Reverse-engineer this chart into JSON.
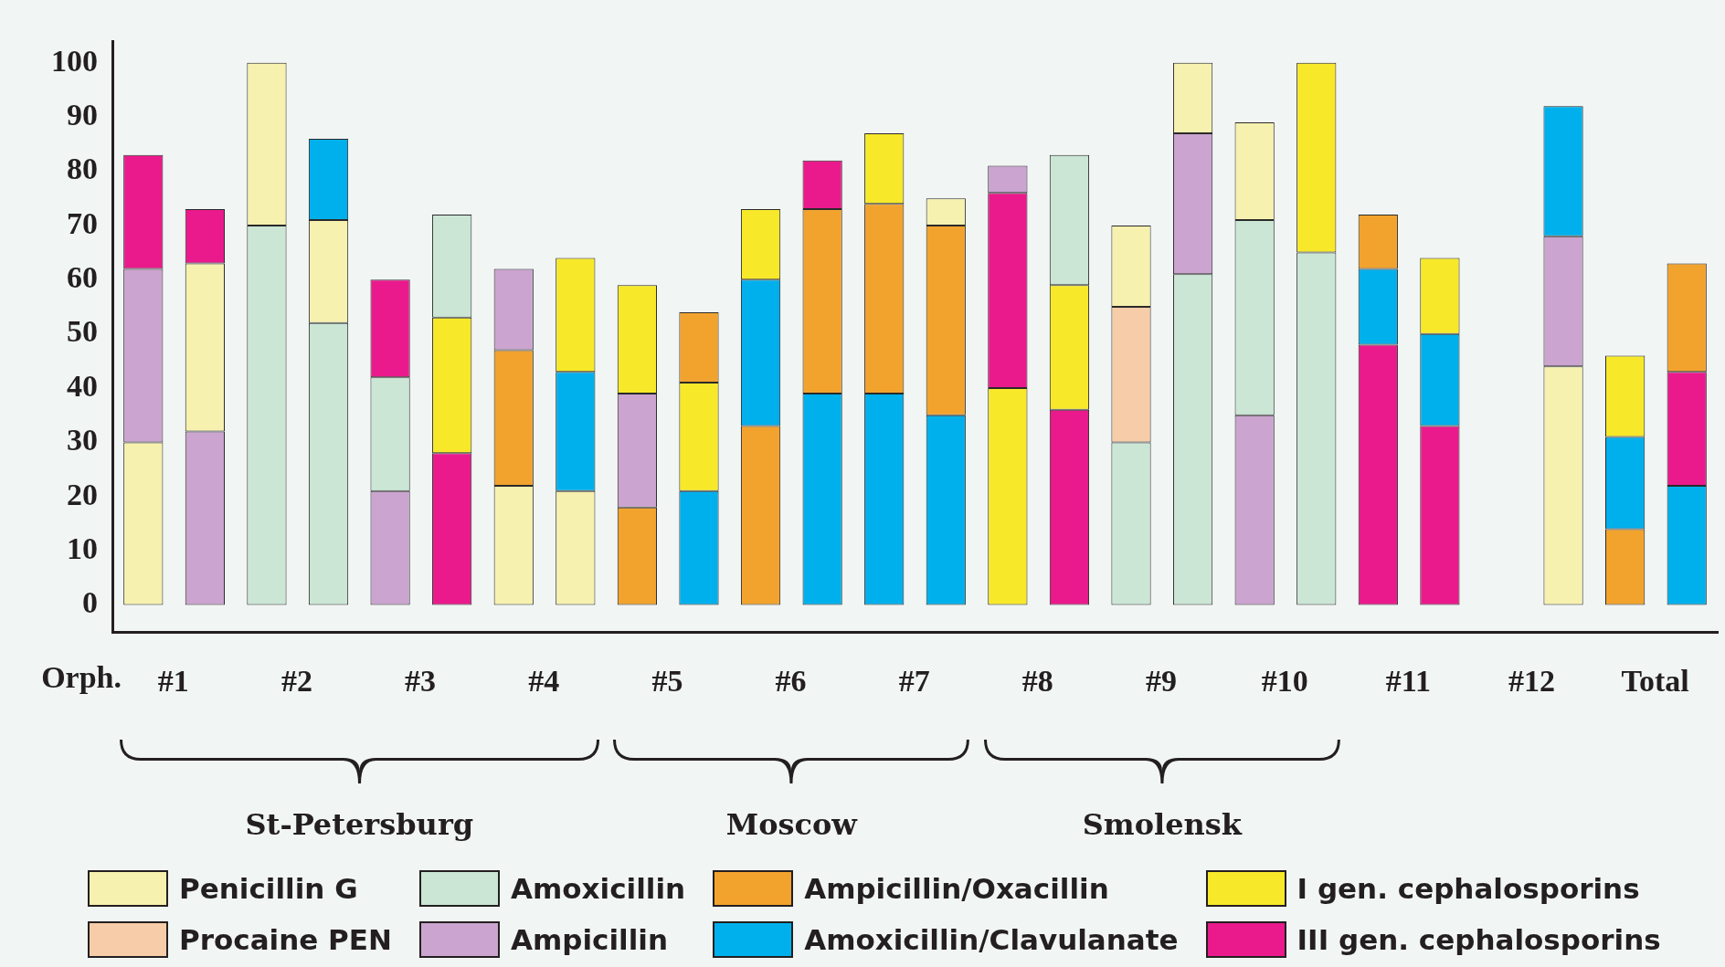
{
  "chart_data": {
    "type": "bar",
    "xlabel": "Orph.",
    "categories": [
      "#1",
      null,
      "#2",
      null,
      "#3",
      null,
      "#4",
      null,
      "#5",
      null,
      "#6",
      null,
      "#7",
      null,
      "#8",
      null,
      "#9",
      null,
      "#10",
      null,
      "#11",
      null,
      "#12",
      null,
      "Total",
      null
    ],
    "ylim": [
      -5,
      104
    ],
    "yticks": [
      0,
      10,
      20,
      30,
      40,
      50,
      60,
      70,
      80,
      90,
      100
    ],
    "legend": "bottom",
    "annotations": [
      "St-Petersburg",
      "Moscow",
      "Smolensk"
    ],
    "series": [
      {
        "name": "Penicillin G",
        "color": "#f7f1b0",
        "values": [
          30,
          31,
          30,
          19,
          null,
          null,
          22,
          21,
          null,
          null,
          null,
          null,
          null,
          5,
          null,
          null,
          15,
          13,
          18,
          null,
          null,
          null,
          null,
          44,
          null,
          null
        ],
        "base": [
          0,
          32,
          70,
          52,
          null,
          null,
          0,
          0,
          null,
          null,
          null,
          null,
          null,
          70,
          null,
          null,
          55,
          87,
          71,
          null,
          null,
          null,
          null,
          0,
          null,
          null
        ]
      },
      {
        "name": "Procaine PEN",
        "color": "#f6cda8",
        "values": [
          null,
          null,
          null,
          null,
          null,
          null,
          null,
          null,
          null,
          null,
          null,
          null,
          null,
          null,
          null,
          null,
          25,
          null,
          null,
          null,
          null,
          null,
          null,
          null,
          null,
          null
        ],
        "base": [
          null,
          null,
          null,
          null,
          null,
          null,
          null,
          null,
          null,
          null,
          null,
          null,
          null,
          null,
          null,
          null,
          30,
          null,
          null,
          null,
          null,
          null,
          null,
          null,
          null,
          null
        ]
      },
      {
        "name": "Amoxicillin",
        "color": "#cbe6d5",
        "values": [
          null,
          null,
          70,
          52,
          21,
          19,
          null,
          null,
          null,
          null,
          null,
          null,
          null,
          null,
          null,
          24,
          30,
          61,
          36,
          65,
          null,
          null,
          null,
          null,
          null,
          null
        ],
        "base": [
          null,
          null,
          0,
          0,
          21,
          53,
          null,
          null,
          null,
          null,
          null,
          null,
          null,
          null,
          null,
          59,
          0,
          0,
          35,
          0,
          null,
          null,
          null,
          null,
          null,
          null
        ]
      },
      {
        "name": "Ampicillin",
        "color": "#cba4cf",
        "values": [
          32,
          32,
          null,
          null,
          21,
          null,
          15,
          null,
          21,
          null,
          null,
          null,
          null,
          null,
          5,
          null,
          null,
          26,
          35,
          null,
          null,
          null,
          null,
          24,
          null,
          null
        ],
        "base": [
          30,
          0,
          null,
          null,
          0,
          null,
          47,
          null,
          18,
          null,
          null,
          null,
          null,
          null,
          76,
          null,
          null,
          61,
          0,
          null,
          null,
          null,
          null,
          44,
          null,
          null
        ]
      },
      {
        "name": "Ampicillin/Oxacillin",
        "color": "#f2a32e",
        "values": [
          null,
          null,
          null,
          null,
          null,
          null,
          25,
          null,
          18,
          13,
          33,
          34,
          35,
          35,
          null,
          null,
          null,
          null,
          null,
          null,
          10,
          null,
          null,
          null,
          14,
          20
        ],
        "base": [
          null,
          null,
          null,
          null,
          null,
          null,
          22,
          null,
          0,
          41,
          0,
          39,
          39,
          35,
          null,
          null,
          null,
          null,
          null,
          null,
          62,
          null,
          null,
          null,
          0,
          43
        ]
      },
      {
        "name": "Amoxicillin/Clavulanate",
        "color": "#00b0ec",
        "values": [
          null,
          null,
          null,
          15,
          null,
          null,
          null,
          22,
          null,
          21,
          27,
          39,
          39,
          35,
          null,
          null,
          null,
          null,
          null,
          null,
          14,
          17,
          null,
          24,
          17,
          22
        ],
        "base": [
          null,
          null,
          null,
          71,
          null,
          null,
          null,
          21,
          null,
          0,
          33,
          0,
          0,
          0,
          null,
          null,
          null,
          null,
          null,
          null,
          48,
          33,
          null,
          68,
          14,
          0
        ]
      },
      {
        "name": "I gen. cephalosporins",
        "color": "#f7e92a",
        "values": [
          null,
          null,
          null,
          null,
          null,
          25,
          null,
          21,
          20,
          20,
          13,
          null,
          13,
          null,
          40,
          23,
          null,
          null,
          null,
          35,
          null,
          14,
          null,
          null,
          15,
          null
        ],
        "base": [
          null,
          null,
          null,
          null,
          null,
          28,
          null,
          43,
          39,
          21,
          60,
          null,
          74,
          null,
          0,
          36,
          null,
          null,
          null,
          65,
          null,
          50,
          null,
          null,
          31,
          null
        ]
      },
      {
        "name": "III gen. cephalosporins",
        "color": "#ea1a8c",
        "values": [
          21,
          10,
          null,
          null,
          18,
          28,
          null,
          null,
          null,
          null,
          null,
          9,
          null,
          null,
          36,
          36,
          null,
          null,
          null,
          null,
          48,
          33,
          null,
          null,
          null,
          21
        ],
        "base": [
          62,
          63,
          null,
          null,
          42,
          0,
          null,
          null,
          null,
          null,
          null,
          73,
          null,
          null,
          40,
          0,
          null,
          null,
          null,
          null,
          0,
          0,
          null,
          null,
          null,
          22
        ]
      }
    ]
  }
}
